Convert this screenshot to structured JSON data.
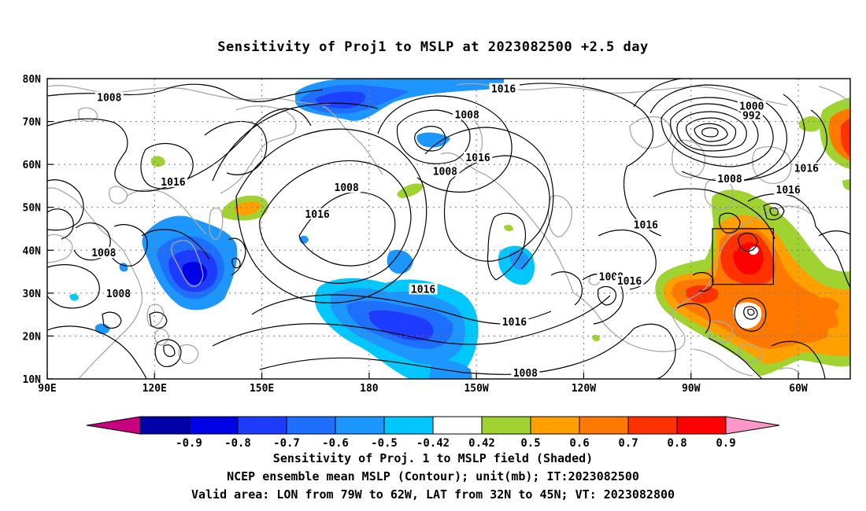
{
  "title": "Sensitivity of Proj1 to MSLP at 2023082500 +2.5 day",
  "captions": [
    "Sensitivity of Proj. 1 to MSLP field (Shaded)",
    "NCEP ensemble mean MSLP (Contour); unit(mb); IT:2023082500",
    "Valid area: LON from 79W to 62W, LAT from 32N to 45N; VT: 2023082800"
  ],
  "map": {
    "lon_range": [
      "90E",
      "50W"
    ],
    "lat_range": [
      "10N",
      "80N"
    ],
    "lat_labels": [
      "80N",
      "70N",
      "60N",
      "50N",
      "40N",
      "30N",
      "20N",
      "10N"
    ],
    "lon_labels": [
      "90E",
      "120E",
      "150E",
      "180",
      "150W",
      "120W",
      "90W",
      "60W"
    ],
    "contour_labels": [
      {
        "text": "1008",
        "lon": 107,
        "lat": 75.5
      },
      {
        "text": "1016",
        "lon": 215,
        "lat": 77.5
      },
      {
        "text": "1008",
        "lon": 205,
        "lat": 71.5
      },
      {
        "text": "1000",
        "lon": 283,
        "lat": 73.5
      },
      {
        "text": "992",
        "lon": 283,
        "lat": 71.3
      },
      {
        "text": "1016",
        "lon": 208,
        "lat": 61.5
      },
      {
        "text": "1008",
        "lon": 199,
        "lat": 58.3
      },
      {
        "text": "1016",
        "lon": 124.5,
        "lat": 55.8
      },
      {
        "text": "1008",
        "lon": 172,
        "lat": 54.5
      },
      {
        "text": "1016",
        "lon": 164,
        "lat": 48.3
      },
      {
        "text": "1008",
        "lon": 277,
        "lat": 56.5
      },
      {
        "text": "1016",
        "lon": 298,
        "lat": 59
      },
      {
        "text": "1016",
        "lon": 293,
        "lat": 54
      },
      {
        "text": "1016",
        "lon": 254,
        "lat": 45.8
      },
      {
        "text": "1008",
        "lon": 105.5,
        "lat": 39.3
      },
      {
        "text": "1008",
        "lon": 109.5,
        "lat": 29.8
      },
      {
        "text": "1016",
        "lon": 193,
        "lat": 30.8
      },
      {
        "text": "1016",
        "lon": 218,
        "lat": 23.2
      },
      {
        "text": "1008",
        "lon": 244.5,
        "lat": 33.7
      },
      {
        "text": "1016",
        "lon": 249.5,
        "lat": 32.7
      },
      {
        "text": "1008",
        "lon": 221,
        "lat": 11.3
      }
    ],
    "valid_area": {
      "lon": [
        "79W",
        "62W"
      ],
      "lat": [
        "32N",
        "45N"
      ]
    }
  },
  "colorbar": {
    "labels": [
      "-0.9",
      "-0.8",
      "-0.7",
      "-0.6",
      "-0.5",
      "-0.42",
      "0.42",
      "0.5",
      "0.6",
      "0.7",
      "0.8",
      "0.9"
    ],
    "colors": [
      "#0000a8",
      "#0000e6",
      "#1e3cff",
      "#1e6eff",
      "#1e96ff",
      "#00c8ff",
      "#ffffff",
      "#a0d232",
      "#ffa000",
      "#ff7800",
      "#ff3200",
      "#ff0000"
    ],
    "low_end_color": "#c80080",
    "high_end_color": "#ff96c8"
  }
}
